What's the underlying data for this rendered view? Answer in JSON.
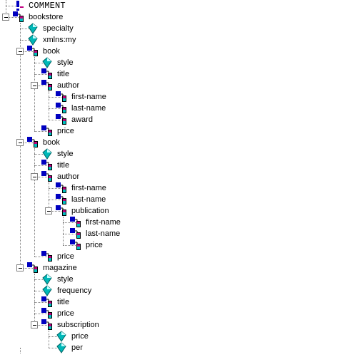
{
  "tree": {
    "nodes": [
      {
        "label": "COMMENT",
        "depth": 0,
        "type": "comment",
        "toggle": false,
        "last": false
      },
      {
        "label": "bookstore",
        "depth": 0,
        "type": "element",
        "toggle": true,
        "last": true
      },
      {
        "label": "specialty",
        "depth": 1,
        "type": "attribute",
        "toggle": false,
        "last": false
      },
      {
        "label": "xmlns:my",
        "depth": 1,
        "type": "attribute",
        "toggle": false,
        "last": false
      },
      {
        "label": "book",
        "depth": 1,
        "type": "element",
        "toggle": true,
        "last": false
      },
      {
        "label": "style",
        "depth": 2,
        "type": "attribute",
        "toggle": false,
        "last": false
      },
      {
        "label": "title",
        "depth": 2,
        "type": "element",
        "toggle": false,
        "last": false
      },
      {
        "label": "author",
        "depth": 2,
        "type": "element",
        "toggle": true,
        "last": false
      },
      {
        "label": "first-name",
        "depth": 3,
        "type": "element",
        "toggle": false,
        "last": false
      },
      {
        "label": "last-name",
        "depth": 3,
        "type": "element",
        "toggle": false,
        "last": false
      },
      {
        "label": "award",
        "depth": 3,
        "type": "element",
        "toggle": false,
        "last": true
      },
      {
        "label": "price",
        "depth": 2,
        "type": "element",
        "toggle": false,
        "last": true
      },
      {
        "label": "book",
        "depth": 1,
        "type": "element",
        "toggle": true,
        "last": false
      },
      {
        "label": "style",
        "depth": 2,
        "type": "attribute",
        "toggle": false,
        "last": false
      },
      {
        "label": "title",
        "depth": 2,
        "type": "element",
        "toggle": false,
        "last": false
      },
      {
        "label": "author",
        "depth": 2,
        "type": "element",
        "toggle": true,
        "last": false
      },
      {
        "label": "first-name",
        "depth": 3,
        "type": "element",
        "toggle": false,
        "last": false
      },
      {
        "label": "last-name",
        "depth": 3,
        "type": "element",
        "toggle": false,
        "last": false
      },
      {
        "label": "publication",
        "depth": 3,
        "type": "element",
        "toggle": true,
        "last": true
      },
      {
        "label": "first-name",
        "depth": 4,
        "type": "element",
        "toggle": false,
        "last": false
      },
      {
        "label": "last-name",
        "depth": 4,
        "type": "element",
        "toggle": false,
        "last": false
      },
      {
        "label": "price",
        "depth": 4,
        "type": "element",
        "toggle": false,
        "last": true
      },
      {
        "label": "price",
        "depth": 2,
        "type": "element",
        "toggle": false,
        "last": true
      },
      {
        "label": "magazine",
        "depth": 1,
        "type": "element",
        "toggle": true,
        "last": false
      },
      {
        "label": "style",
        "depth": 2,
        "type": "attribute",
        "toggle": false,
        "last": false
      },
      {
        "label": "frequency",
        "depth": 2,
        "type": "attribute",
        "toggle": false,
        "last": false
      },
      {
        "label": "title",
        "depth": 2,
        "type": "element",
        "toggle": false,
        "last": false
      },
      {
        "label": "price",
        "depth": 2,
        "type": "element",
        "toggle": false,
        "last": false
      },
      {
        "label": "subscription",
        "depth": 2,
        "type": "element",
        "toggle": true,
        "last": true
      },
      {
        "label": "price",
        "depth": 3,
        "type": "attribute",
        "toggle": false,
        "last": false
      },
      {
        "label": "per",
        "depth": 3,
        "type": "attribute",
        "toggle": false,
        "last": true
      }
    ]
  },
  "colors": {
    "element_dark": "#0000c0",
    "element_light": "#00c0c0",
    "element_accent": "#c00080",
    "attribute": "#00b8b8",
    "comment": "#0000c0",
    "connector": "#808080"
  }
}
